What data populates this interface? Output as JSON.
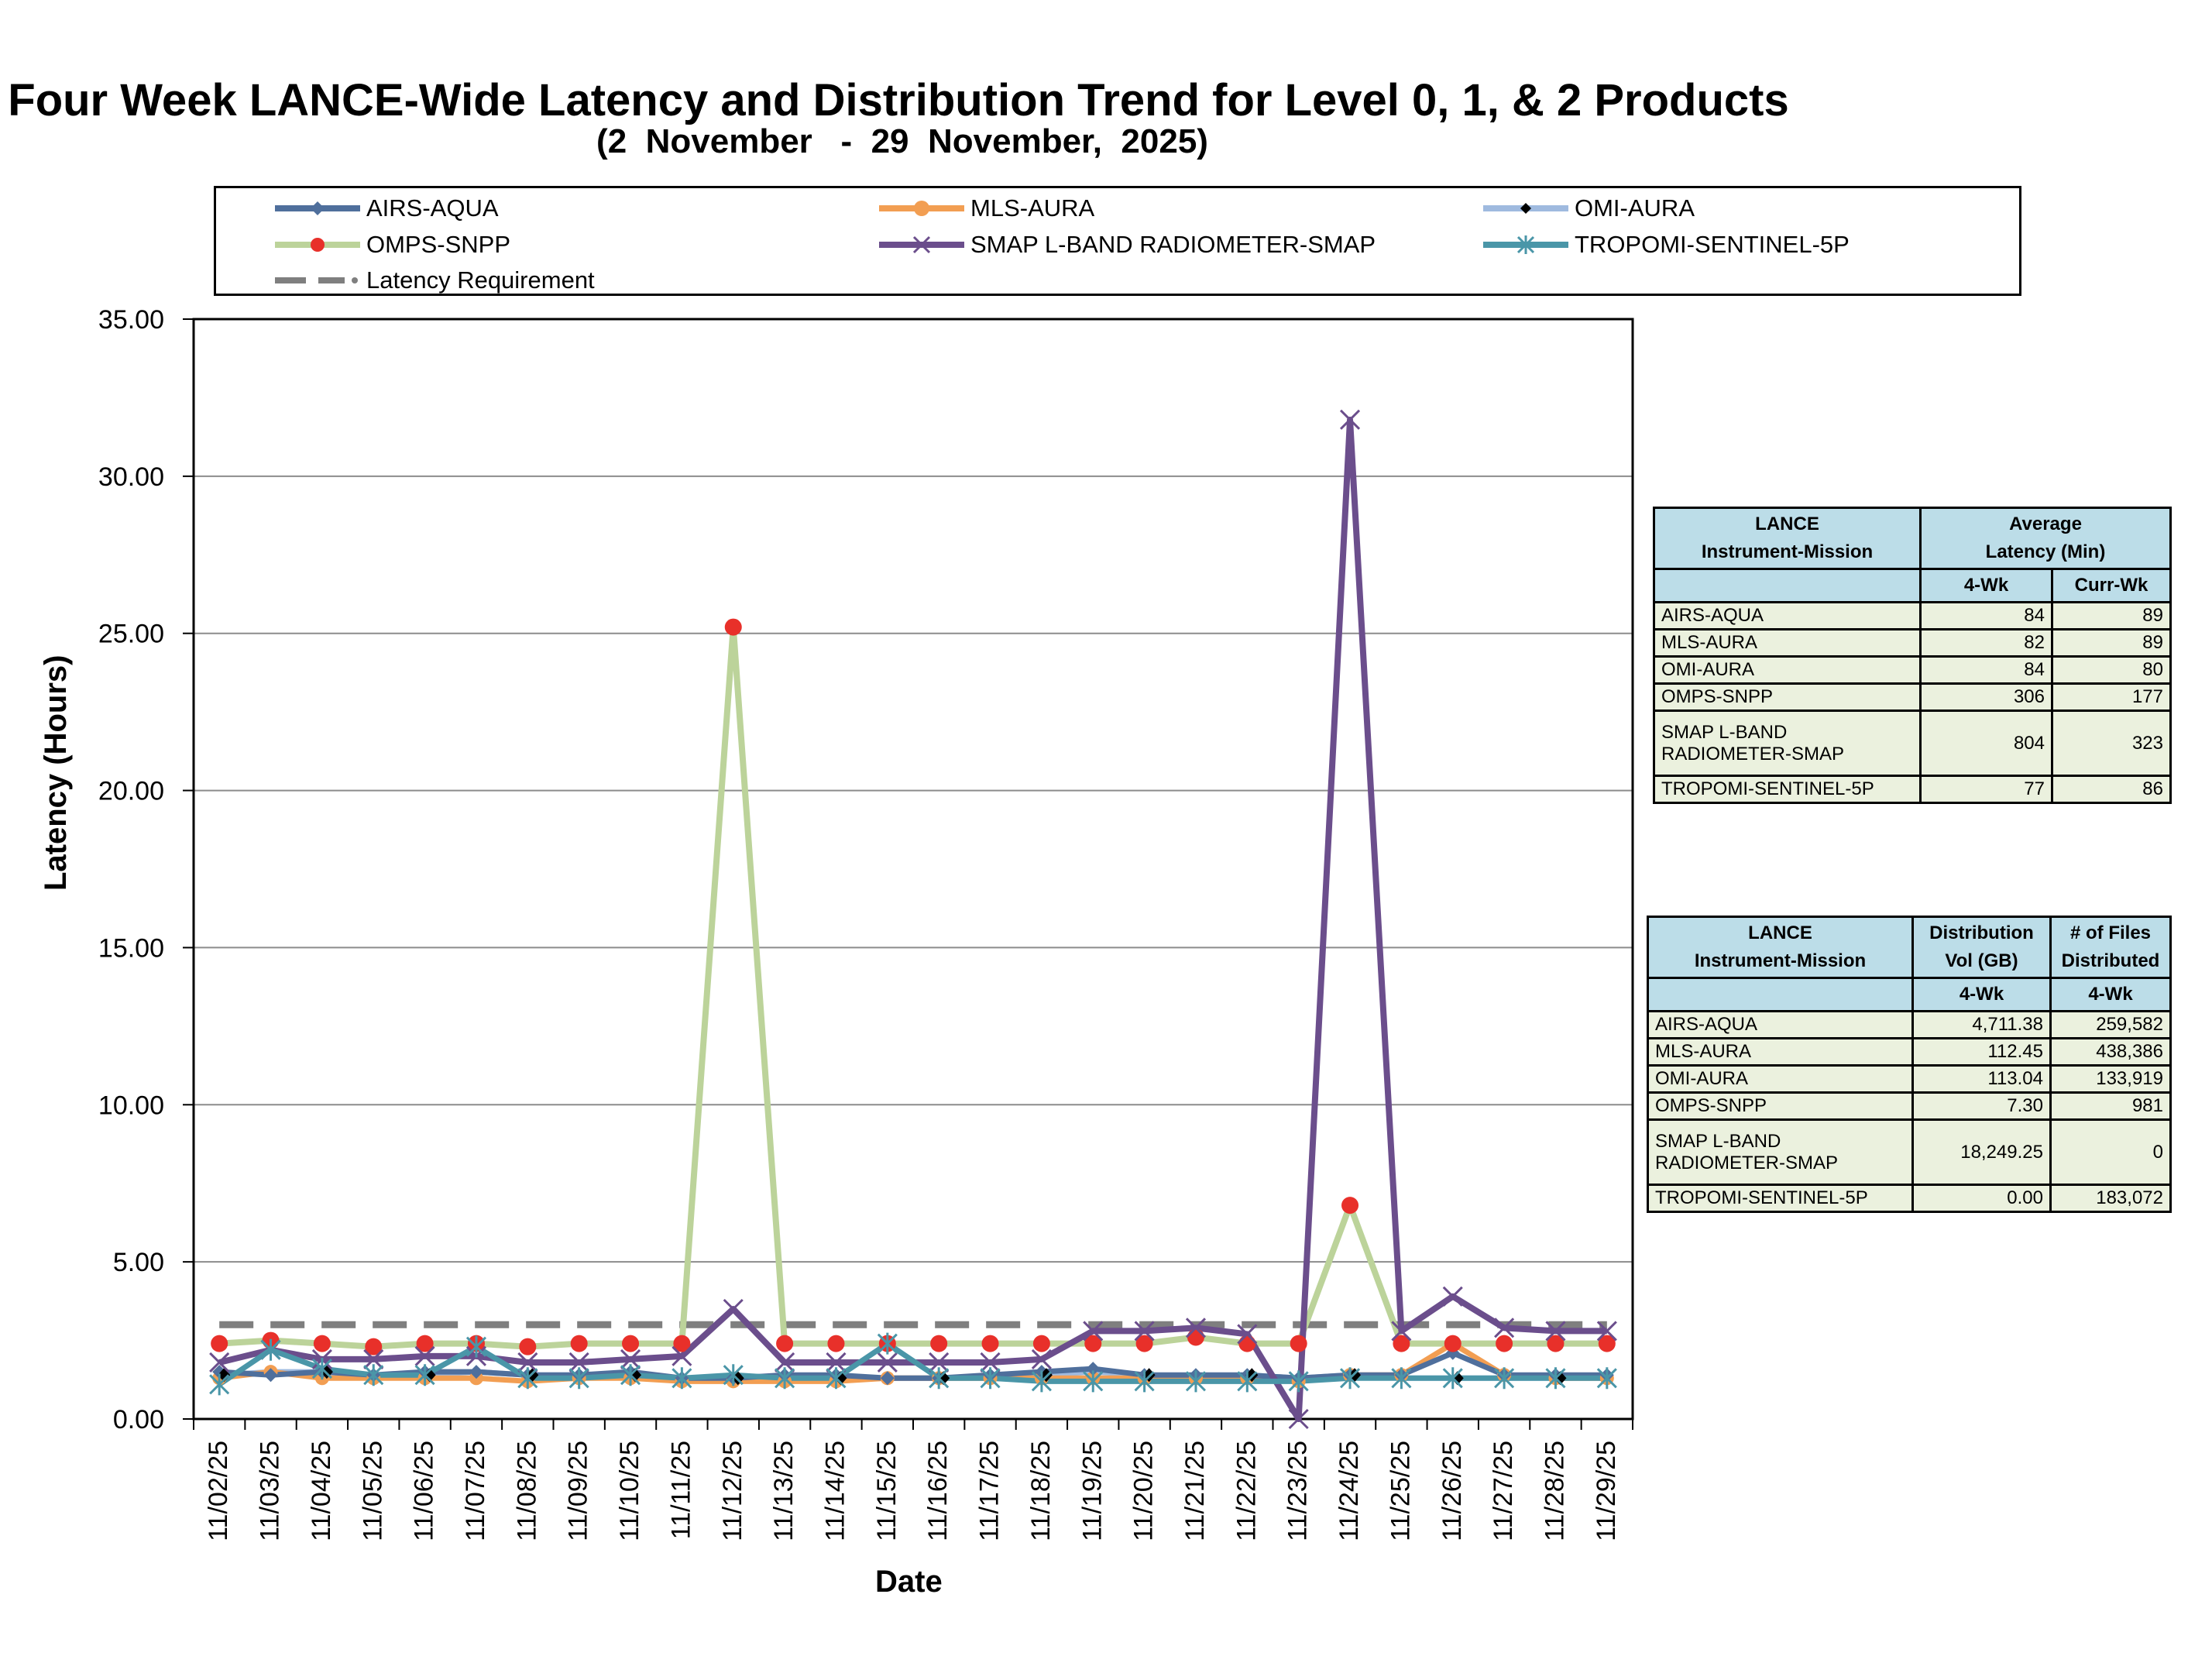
{
  "title": "Four Week LANCE-Wide Latency and Distribution Trend for Level 0, 1, & 2 Products",
  "subtitle": "(2  November   -  29  November,  2025)",
  "colors": {
    "AIRS-AQUA": "#4f6f9c",
    "MLS-AURA": "#f29e52",
    "OMI-AURA": "#9fbadf",
    "OMPS-SNPP": "#bcd39a",
    "OMPS-SNPP-marker": "#e8302a",
    "SMAP L-BAND RADIOMETER-SMAP": "#6b4e8c",
    "TROPOMI-SENTINEL-5P": "#4a96a8",
    "Latency Requirement": "#7f7f7f",
    "table_header_bg": "#bcdde8",
    "table_body_bg": "#ebf1de"
  },
  "legend": [
    {
      "name": "AIRS-AQUA",
      "marker": "diamond"
    },
    {
      "name": "MLS-AURA",
      "marker": "circle"
    },
    {
      "name": "OMI-AURA",
      "marker": "diamond-black"
    },
    {
      "name": "OMPS-SNPP",
      "marker": "circle-red"
    },
    {
      "name": "SMAP L-BAND RADIOMETER-SMAP",
      "marker": "x"
    },
    {
      "name": "TROPOMI-SENTINEL-5P",
      "marker": "star"
    },
    {
      "name": "Latency Requirement",
      "marker": "dash"
    }
  ],
  "chart_data": {
    "type": "line",
    "xlabel": "Date",
    "ylabel": "Latency (Hours)",
    "ylim": [
      0,
      35
    ],
    "yticks": [
      "0.00",
      "5.00",
      "10.00",
      "15.00",
      "20.00",
      "25.00",
      "30.00",
      "35.00"
    ],
    "grid": "horizontal",
    "legend_position": "top",
    "categories": [
      "11/02/25",
      "11/03/25",
      "11/04/25",
      "11/05/25",
      "11/06/25",
      "11/07/25",
      "11/08/25",
      "11/09/25",
      "11/10/25",
      "11/11/25",
      "11/12/25",
      "11/13/25",
      "11/14/25",
      "11/15/25",
      "11/16/25",
      "11/17/25",
      "11/18/25",
      "11/19/25",
      "11/20/25",
      "11/21/25",
      "11/22/25",
      "11/23/25",
      "11/24/25",
      "11/25/25",
      "11/26/25",
      "11/27/25",
      "11/28/25",
      "11/29/25"
    ],
    "series": [
      {
        "name": "Latency Requirement",
        "values": [
          3,
          3,
          3,
          3,
          3,
          3,
          3,
          3,
          3,
          3,
          3,
          3,
          3,
          3,
          3,
          3,
          3,
          3,
          3,
          3,
          3,
          3,
          3,
          3,
          3,
          3,
          3,
          3
        ]
      },
      {
        "name": "OMI-AURA",
        "values": [
          1.4,
          1.5,
          1.5,
          1.4,
          1.4,
          1.5,
          1.4,
          1.4,
          1.4,
          1.3,
          1.3,
          1.3,
          1.3,
          1.3,
          1.3,
          1.3,
          1.4,
          1.5,
          1.4,
          1.3,
          1.4,
          1.3,
          1.4,
          1.3,
          1.3,
          1.3,
          1.3,
          1.3
        ]
      },
      {
        "name": "MLS-AURA",
        "values": [
          1.3,
          1.5,
          1.3,
          1.3,
          1.3,
          1.3,
          1.2,
          1.3,
          1.3,
          1.2,
          1.2,
          1.2,
          1.2,
          1.3,
          1.3,
          1.3,
          1.3,
          1.3,
          1.3,
          1.3,
          1.3,
          1.2,
          1.4,
          1.4,
          2.4,
          1.4,
          1.3,
          1.3
        ]
      },
      {
        "name": "AIRS-AQUA",
        "values": [
          1.5,
          1.4,
          1.5,
          1.4,
          1.5,
          1.5,
          1.4,
          1.4,
          1.5,
          1.3,
          1.3,
          1.4,
          1.4,
          1.3,
          1.3,
          1.4,
          1.5,
          1.6,
          1.4,
          1.4,
          1.4,
          1.3,
          1.4,
          1.4,
          2.1,
          1.4,
          1.4,
          1.4
        ]
      },
      {
        "name": "OMPS-SNPP",
        "values": [
          2.4,
          2.5,
          2.4,
          2.3,
          2.4,
          2.4,
          2.3,
          2.4,
          2.4,
          2.4,
          25.2,
          2.4,
          2.4,
          2.4,
          2.4,
          2.4,
          2.4,
          2.4,
          2.4,
          2.6,
          2.4,
          2.4,
          6.8,
          2.4,
          2.4,
          2.4,
          2.4,
          2.4
        ]
      },
      {
        "name": "SMAP L-BAND RADIOMETER-SMAP",
        "values": [
          1.8,
          2.2,
          1.9,
          1.9,
          2.0,
          2.0,
          1.8,
          1.8,
          1.9,
          2.0,
          3.5,
          1.8,
          1.8,
          1.8,
          1.8,
          1.8,
          1.9,
          2.8,
          2.8,
          2.9,
          2.7,
          0.0,
          31.8,
          2.8,
          3.9,
          2.9,
          2.8,
          2.8
        ]
      },
      {
        "name": "TROPOMI-SENTINEL-5P",
        "values": [
          1.1,
          2.2,
          1.6,
          1.4,
          1.4,
          2.3,
          1.3,
          1.3,
          1.4,
          1.3,
          1.4,
          1.3,
          1.3,
          2.4,
          1.3,
          1.3,
          1.2,
          1.2,
          1.2,
          1.2,
          1.2,
          1.2,
          1.3,
          1.3,
          1.3,
          1.3,
          1.3,
          1.3
        ]
      }
    ]
  },
  "latency_table": {
    "header": {
      "col1": [
        "LANCE",
        "Instrument-Mission"
      ],
      "col2": [
        "Average",
        "Latency (Min)"
      ],
      "sub1": "4-Wk",
      "sub2": "Curr-Wk"
    },
    "rows": [
      {
        "name": "AIRS-AQUA",
        "v1": "84",
        "v2": "89"
      },
      {
        "name": "MLS-AURA",
        "v1": "82",
        "v2": "89"
      },
      {
        "name": "OMI-AURA",
        "v1": "84",
        "v2": "80"
      },
      {
        "name": "OMPS-SNPP",
        "v1": "306",
        "v2": "177"
      },
      {
        "name": "SMAP L-BAND RADIOMETER-SMAP",
        "v1": "804",
        "v2": "323"
      },
      {
        "name": "TROPOMI-SENTINEL-5P",
        "v1": "77",
        "v2": "86"
      }
    ]
  },
  "distribution_table": {
    "header": {
      "col1": [
        "LANCE",
        "Instrument-Mission"
      ],
      "col2": [
        "Distribution",
        "Vol (GB)"
      ],
      "col3": [
        "# of Files",
        "Distributed"
      ],
      "sub1": "4-Wk",
      "sub2": "4-Wk"
    },
    "rows": [
      {
        "name": "AIRS-AQUA",
        "v1": "4,711.38",
        "v2": "259,582"
      },
      {
        "name": "MLS-AURA",
        "v1": "112.45",
        "v2": "438,386"
      },
      {
        "name": "OMI-AURA",
        "v1": "113.04",
        "v2": "133,919"
      },
      {
        "name": "OMPS-SNPP",
        "v1": "7.30",
        "v2": "981"
      },
      {
        "name": "SMAP L-BAND RADIOMETER-SMAP",
        "v1": "18,249.25",
        "v2": "0"
      },
      {
        "name": "TROPOMI-SENTINEL-5P",
        "v1": "0.00",
        "v2": "183,072"
      }
    ]
  }
}
